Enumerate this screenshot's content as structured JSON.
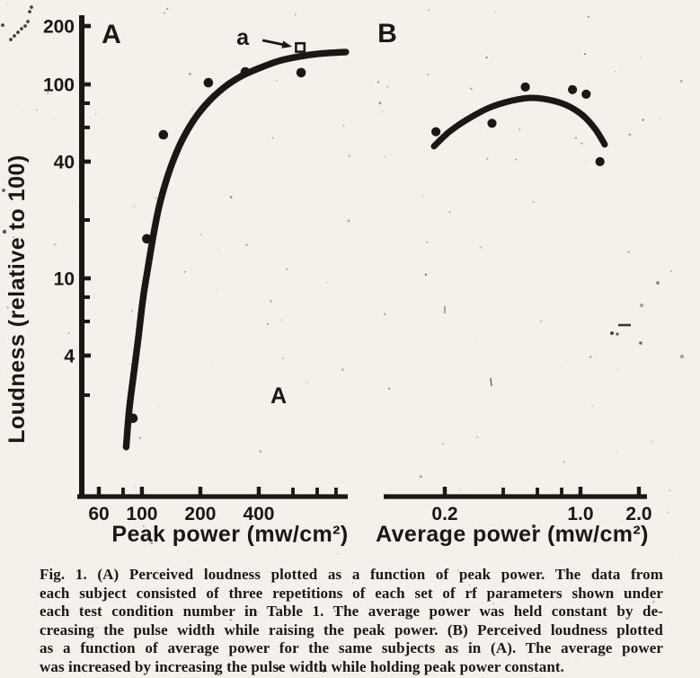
{
  "page": {
    "background": "#f3f1ea",
    "ink": "#1b1814"
  },
  "chart_data": [
    {
      "type": "scatter",
      "panel_label": "A",
      "in_plot_label": "A",
      "xlabel": "Peak power (mw/cm²)",
      "ylabel": "Loudness (relative to 100)",
      "xscale": "log",
      "yscale": "log",
      "xlim": [
        46,
        1150
      ],
      "ylim": [
        1.2,
        210
      ],
      "grid": false,
      "x_ticks": {
        "major": [
          {
            "v": 60,
            "label": "60"
          },
          {
            "v": 100,
            "label": "100"
          },
          {
            "v": 200,
            "label": "200"
          },
          {
            "v": 400,
            "label": "400"
          }
        ],
        "minor": [
          80,
          600,
          800,
          1000
        ]
      },
      "y_ticks": {
        "major": [
          {
            "v": 200,
            "label": "200"
          },
          {
            "v": 100,
            "label": "100"
          },
          {
            "v": 40,
            "label": "40"
          },
          {
            "v": 10,
            "label": "10"
          },
          {
            "v": 4,
            "label": "4"
          }
        ],
        "minor": [
          80,
          60,
          20,
          8,
          6,
          2.5
        ]
      },
      "points": [
        [
          90,
          1.9
        ],
        [
          106,
          16
        ],
        [
          129,
          55
        ],
        [
          220,
          102
        ],
        [
          341,
          116
        ],
        [
          661,
          115
        ]
      ],
      "outlier_point": {
        "x": 654,
        "y": 155,
        "marker": "open-square",
        "annotation": "a"
      },
      "fit_curve": [
        [
          83,
          1.35
        ],
        [
          86,
          2.1
        ],
        [
          91,
          3.3
        ],
        [
          96,
          5.0
        ],
        [
          101,
          7.7
        ],
        [
          107,
          11.1
        ],
        [
          114,
          16.2
        ],
        [
          122,
          23.0
        ],
        [
          133,
          31.6
        ],
        [
          147,
          42.0
        ],
        [
          165,
          54.0
        ],
        [
          190,
          68.0
        ],
        [
          223,
          82.5
        ],
        [
          267,
          97.0
        ],
        [
          323,
          110.0
        ],
        [
          400,
          121.0
        ],
        [
          506,
          132.0
        ],
        [
          640,
          139.0
        ],
        [
          818,
          144.0
        ],
        [
          1124,
          147.0
        ]
      ]
    },
    {
      "type": "scatter",
      "panel_label": "B",
      "in_plot_label": "",
      "xlabel": "Average power (mw/cm²)",
      "ylabel": "",
      "xscale": "log",
      "yscale": "log",
      "xlim": [
        0.097,
        2.2
      ],
      "ylim": [
        1.2,
        210
      ],
      "grid": false,
      "x_ticks": {
        "major": [
          {
            "v": 0.2,
            "label": "0.2"
          },
          {
            "v": 1.0,
            "label": "1.0"
          },
          {
            "v": 2.0,
            "label": "2.0"
          }
        ],
        "minor": [
          0.4,
          0.6,
          0.8
        ]
      },
      "y_ticks": {
        "major": [],
        "minor": []
      },
      "points": [
        [
          0.18,
          57
        ],
        [
          0.35,
          63
        ],
        [
          0.52,
          97
        ],
        [
          0.91,
          94
        ],
        [
          1.07,
          89
        ],
        [
          1.26,
          40
        ]
      ],
      "fit_curve": [
        [
          0.176,
          48
        ],
        [
          0.211,
          57
        ],
        [
          0.261,
          66
        ],
        [
          0.341,
          76
        ],
        [
          0.445,
          82.5
        ],
        [
          0.551,
          85.2
        ],
        [
          0.681,
          83.5
        ],
        [
          0.844,
          78.3
        ],
        [
          1.022,
          69.6
        ],
        [
          1.185,
          59.3
        ],
        [
          1.334,
          49.0
        ]
      ]
    }
  ],
  "caption": {
    "lines": [
      "Fig. 1. (A) Perceived loudness plotted as a function of peak power. The data from",
      "each subject consisted of three repetitions of each set of rf parameters shown under",
      "each test condition number in Table 1. The average power was held constant by de-",
      "creasing the pulse width while raising the peak power. (B) Perceived loudness plotted",
      "as a function of average power for the same subjects as in (A). The average power",
      "was increased by increasing the pulse width while holding peak power constant."
    ]
  }
}
